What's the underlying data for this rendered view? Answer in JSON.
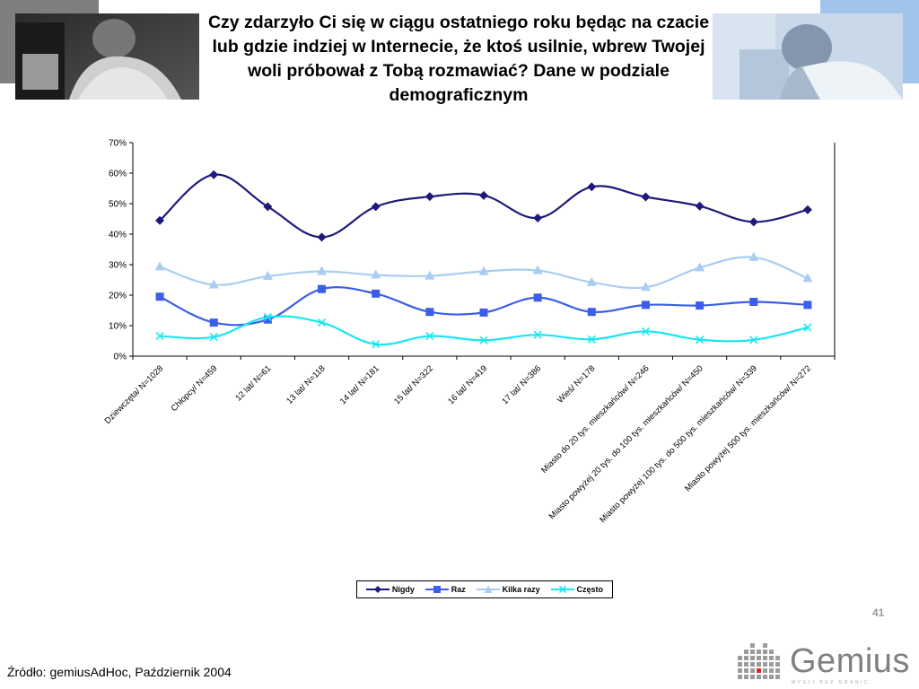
{
  "title": "Czy zdarzyło Ci się w ciągu ostatniego roku będąc na czacie lub gdzie indziej w Internecie, że ktoś usilnie, wbrew Twojej woli próbował z Tobą rozmawiać? Dane w podziale demograficznym",
  "page_number": "41",
  "source": "Źródło: gemiusAdHoc, Październik 2004",
  "logo": {
    "word": "Gemius",
    "tagline": "MYŚLI BEZ GRANIC"
  },
  "colors": {
    "nigdy": "#1f1a7a",
    "raz": "#3b5ee8",
    "kilka_razy": "#a9cdf2",
    "czesto": "#19e6ef",
    "corner_gray": "#7f7f7f",
    "corner_blue": "#9fc5ec"
  },
  "chart_data": {
    "type": "line",
    "categories": [
      "Dziewczęta/ N=1028",
      "Chłopcy/ N=459",
      "12 lat/ N=61",
      "13 lat/ N=118",
      "14 lat/ N=181",
      "15 lat/ N=322",
      "16 lat/ N=419",
      "17 lat/ N=386",
      "Wieś/ N=178",
      "Miasto do 20 tys. mieszkańców/ N=246",
      "Miasto powyżej 20 tys. do 100 tys. mieszkańców/ N=450",
      "Miasto powyżej 100 tys. do 500 tys. mieszkańców/ N=339",
      "Miasto powyżej 500 tys. mieszkańców/ N=272"
    ],
    "series": [
      {
        "name": "Nigdy",
        "marker": "diamond",
        "values": [
          44.5,
          59.5,
          49,
          39,
          49,
          52.3,
          52.7,
          45.3,
          55.5,
          52.2,
          49.2,
          44,
          48
        ]
      },
      {
        "name": "Raz",
        "marker": "square",
        "values": [
          19.5,
          11,
          12,
          22,
          20.5,
          14.5,
          14.3,
          19.2,
          14.5,
          16.8,
          16.6,
          17.8,
          16.8
        ]
      },
      {
        "name": "Kilka razy",
        "marker": "triangle",
        "values": [
          29.3,
          23.4,
          26.2,
          27.8,
          26.6,
          26.3,
          27.8,
          28.1,
          24.2,
          22.6,
          29,
          32.4,
          25.5
        ]
      },
      {
        "name": "Często",
        "marker": "x",
        "values": [
          6.6,
          6.3,
          12.8,
          11,
          3.9,
          6.6,
          5.2,
          7,
          5.5,
          8.1,
          5.4,
          5.3,
          9.4
        ]
      }
    ],
    "yticks": [
      "0%",
      "10%",
      "20%",
      "30%",
      "40%",
      "50%",
      "60%",
      "70%"
    ],
    "ylim": [
      0,
      70
    ],
    "grid": false,
    "legend_position": "bottom"
  }
}
